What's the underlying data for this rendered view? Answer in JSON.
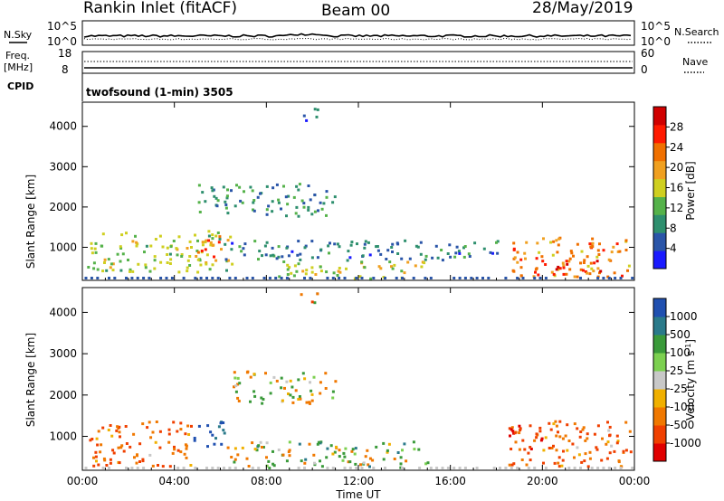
{
  "header": {
    "station": "Rankin Inlet (fitACF)",
    "beam": "Beam 00",
    "date": "28/May/2019"
  },
  "noise_panel": {
    "left_label": "N.Sky",
    "right_label": "N.Search",
    "left_ticks": [
      "10^5",
      "10^0"
    ],
    "right_ticks": [
      "10^5",
      "10^0"
    ]
  },
  "freq_panel": {
    "left_label_1": "Freq.",
    "left_label_2": "[MHz]",
    "cpid_label": "CPID",
    "right_label": "Nave",
    "left_ticks": [
      "18",
      "8"
    ],
    "right_ticks": [
      "60",
      "0"
    ],
    "cpid_text": "twofsound (1-min) 3505"
  },
  "colors": {
    "power_scale": [
      "#1a1aff",
      "#2a55a8",
      "#2e8f6e",
      "#55b24a",
      "#cfcf20",
      "#f0a020",
      "#f07000",
      "#ff1a00",
      "#d00000"
    ],
    "velocity_scale": [
      "#e00000",
      "#f04000",
      "#f07800",
      "#f0b000",
      "#c8c8c8",
      "#7cd050",
      "#3a9a3a",
      "#2a7a8a",
      "#2050b0"
    ]
  },
  "chart_data": [
    {
      "type": "heatmap",
      "name": "power",
      "xlabel": "",
      "ylabel": "Slant Range [km]",
      "x_ticks": [
        "00:00",
        "04:00",
        "08:00",
        "12:00",
        "16:00",
        "20:00",
        "00:00"
      ],
      "xlim_hours": [
        0,
        24
      ],
      "y_ticks": [
        1000,
        2000,
        3000,
        4000
      ],
      "ylim": [
        180,
        4600
      ],
      "colorbar": {
        "label": "Power [dB]",
        "ticks": [
          4,
          8,
          12,
          16,
          20,
          24,
          28
        ],
        "range": [
          0,
          32
        ]
      },
      "echo_regions": [
        {
          "t0": 0.2,
          "t1": 6.5,
          "r0": 400,
          "r1": 1450,
          "value": 14
        },
        {
          "t0": 4.8,
          "t1": 6.0,
          "r0": 700,
          "r1": 1300,
          "value": 24
        },
        {
          "t0": 8.5,
          "t1": 15.0,
          "r0": 250,
          "r1": 700,
          "value": 16
        },
        {
          "t0": 18.5,
          "t1": 23.8,
          "r0": 300,
          "r1": 1300,
          "value": 22
        },
        {
          "t0": 19.5,
          "t1": 22.5,
          "r0": 350,
          "r1": 700,
          "value": 28
        },
        {
          "t0": 5.0,
          "t1": 11.0,
          "r0": 1800,
          "r1": 2600,
          "value": 8
        },
        {
          "t0": 9.3,
          "t1": 10.2,
          "r0": 4150,
          "r1": 4500,
          "value": 6
        },
        {
          "t0": 6.0,
          "t1": 18.5,
          "r0": 700,
          "r1": 1200,
          "value": 6
        }
      ]
    },
    {
      "type": "heatmap",
      "name": "velocity",
      "xlabel": "Time UT",
      "ylabel": "Slant Range [km]",
      "x_ticks": [
        "00:00",
        "04:00",
        "08:00",
        "12:00",
        "16:00",
        "20:00",
        "00:00"
      ],
      "xlim_hours": [
        0,
        24
      ],
      "y_ticks": [
        1000,
        2000,
        3000,
        4000
      ],
      "ylim": [
        180,
        4600
      ],
      "colorbar": {
        "label": "Velocity [m s^-1]",
        "ticks": [
          "1000",
          "500",
          "100",
          "25",
          "-25",
          "-100",
          "-500",
          "-1000"
        ]
      },
      "echo_regions": [
        {
          "t0": 0.2,
          "t1": 4.8,
          "r0": 300,
          "r1": 1400,
          "value": -300
        },
        {
          "t0": 4.8,
          "t1": 6.2,
          "r0": 700,
          "r1": 1400,
          "value": 800
        },
        {
          "t0": 6.2,
          "t1": 15.0,
          "r0": 250,
          "r1": 900,
          "value": 60
        },
        {
          "t0": 18.5,
          "t1": 23.8,
          "r0": 300,
          "r1": 1400,
          "value": -300
        },
        {
          "t0": 18.5,
          "t1": 20.0,
          "r0": 700,
          "r1": 1300,
          "value": -700
        },
        {
          "t0": 6.5,
          "t1": 11.0,
          "r0": 1800,
          "r1": 2600,
          "value": 0
        },
        {
          "t0": 9.3,
          "t1": 10.2,
          "r0": 4150,
          "r1": 4500,
          "value": -60
        }
      ]
    }
  ]
}
